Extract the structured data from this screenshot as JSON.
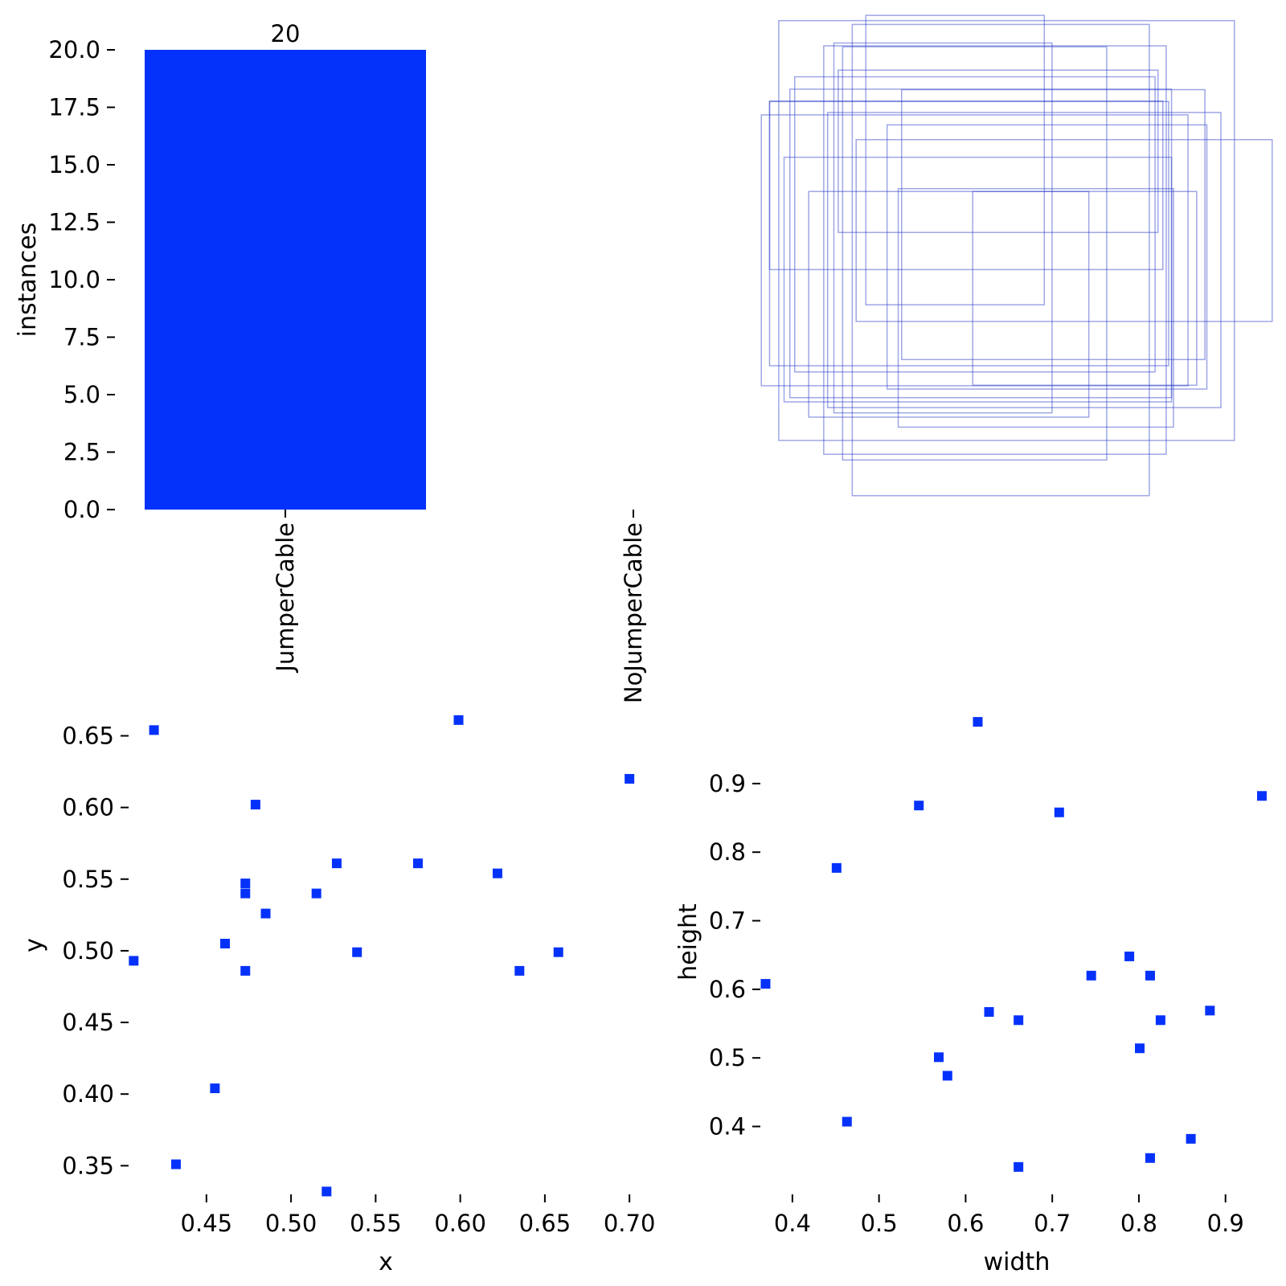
{
  "figure": {
    "background": "#ffffff"
  },
  "colors": {
    "bar_fill": "#0532fa",
    "marker_fill": "#0532fa",
    "box_stroke": "rgba(40,60,200,0.45)",
    "tick_color": "#000000",
    "text_color": "#000000"
  },
  "chart_data": [
    {
      "id": "instances_per_class",
      "type": "bar",
      "ylabel": "instances",
      "categories": [
        "JumperCable",
        "NoJumperCable"
      ],
      "values": [
        20,
        0
      ],
      "bar_labels": [
        "20",
        ""
      ],
      "ylim": [
        0,
        20
      ],
      "yticks": [
        0,
        2.5,
        5,
        7.5,
        10,
        12.5,
        15,
        17.5,
        20
      ],
      "ytick_labels": [
        "0.0",
        "2.5",
        "5.0",
        "7.5",
        "10.0",
        "12.5",
        "15.0",
        "17.5",
        "20.0"
      ],
      "grid": false,
      "legend": "none"
    },
    {
      "id": "bounding_boxes_overlay",
      "type": "rectangles",
      "note": "overlapping unfilled bounding-box outlines, no axes ticks",
      "xlim": [
        0.02,
        1.1
      ],
      "ylim": [
        0.04,
        1.07
      ],
      "rects": [
        [
          0.068,
          0.058,
          0.942,
          0.882
        ],
        [
          0.161,
          0.111,
          0.708,
          0.858
        ],
        [
          0.22,
          0.066,
          0.614,
          0.99
        ],
        [
          0.091,
          0.202,
          0.789,
          0.648
        ],
        [
          0.169,
          0.251,
          0.813,
          0.62
        ],
        [
          0.032,
          0.256,
          0.882,
          0.569
        ],
        [
          0.2,
          0.113,
          0.546,
          0.868
        ],
        [
          0.101,
          0.176,
          0.745,
          0.62
        ],
        [
          0.049,
          0.228,
          0.825,
          0.555
        ],
        [
          0.079,
          0.345,
          0.801,
          0.514
        ],
        [
          0.292,
          0.277,
          0.661,
          0.555
        ],
        [
          0.322,
          0.203,
          0.627,
          0.567
        ],
        [
          0.182,
          0.105,
          0.451,
          0.777
        ],
        [
          0.228,
          0.308,
          0.86,
          0.382
        ],
        [
          0.049,
          0.227,
          0.813,
          0.354
        ],
        [
          0.315,
          0.411,
          0.569,
          0.501
        ],
        [
          0.13,
          0.417,
          0.579,
          0.474
        ],
        [
          0.191,
          0.162,
          0.661,
          0.341
        ],
        [
          0.248,
          0.047,
          0.369,
          0.608
        ],
        [
          0.469,
          0.417,
          0.463,
          0.407
        ]
      ]
    },
    {
      "id": "box_centers",
      "type": "scatter",
      "xlabel": "x",
      "ylabel": "y",
      "xlim": [
        0.404,
        0.708
      ],
      "ylim": [
        0.33,
        0.68
      ],
      "xticks": [
        0.45,
        0.5,
        0.55,
        0.6,
        0.65,
        0.7
      ],
      "xtick_labels": [
        "0.45",
        "0.50",
        "0.55",
        "0.60",
        "0.65",
        "0.70"
      ],
      "yticks": [
        0.65,
        0.6,
        0.55,
        0.5,
        0.45,
        0.4,
        0.35
      ],
      "ytick_labels": [
        "0.65",
        "0.60",
        "0.55",
        "0.50",
        "0.45",
        "0.40",
        "0.35"
      ],
      "points": [
        [
          0.419,
          0.654
        ],
        [
          0.599,
          0.661
        ],
        [
          0.7,
          0.62
        ],
        [
          0.479,
          0.602
        ],
        [
          0.527,
          0.561
        ],
        [
          0.575,
          0.561
        ],
        [
          0.622,
          0.554
        ],
        [
          0.473,
          0.547
        ],
        [
          0.473,
          0.54
        ],
        [
          0.515,
          0.54
        ],
        [
          0.485,
          0.526
        ],
        [
          0.461,
          0.505
        ],
        [
          0.407,
          0.493
        ],
        [
          0.539,
          0.499
        ],
        [
          0.658,
          0.499
        ],
        [
          0.635,
          0.486
        ],
        [
          0.473,
          0.486
        ],
        [
          0.455,
          0.404
        ],
        [
          0.432,
          0.351
        ],
        [
          0.521,
          0.332
        ]
      ],
      "grid": false,
      "legend": "none"
    },
    {
      "id": "box_sizes",
      "type": "scatter",
      "xlabel": "width",
      "ylabel": "height",
      "xlim": [
        0.363,
        0.955
      ],
      "ylim": [
        0.301,
        1.037
      ],
      "xticks": [
        0.4,
        0.5,
        0.6,
        0.7,
        0.8,
        0.9
      ],
      "xtick_labels": [
        "0.4",
        "0.5",
        "0.6",
        "0.7",
        "0.8",
        "0.9"
      ],
      "yticks": [
        0.9,
        0.8,
        0.7,
        0.6,
        0.5,
        0.4
      ],
      "ytick_labels": [
        "0.9",
        "0.8",
        "0.7",
        "0.6",
        "0.5",
        "0.4"
      ],
      "points": [
        [
          0.614,
          0.99
        ],
        [
          0.546,
          0.868
        ],
        [
          0.942,
          0.882
        ],
        [
          0.708,
          0.858
        ],
        [
          0.451,
          0.777
        ],
        [
          0.789,
          0.648
        ],
        [
          0.745,
          0.62
        ],
        [
          0.813,
          0.62
        ],
        [
          0.369,
          0.608
        ],
        [
          0.627,
          0.567
        ],
        [
          0.882,
          0.569
        ],
        [
          0.661,
          0.555
        ],
        [
          0.825,
          0.555
        ],
        [
          0.801,
          0.514
        ],
        [
          0.569,
          0.501
        ],
        [
          0.579,
          0.474
        ],
        [
          0.463,
          0.407
        ],
        [
          0.86,
          0.382
        ],
        [
          0.813,
          0.354
        ],
        [
          0.661,
          0.341
        ]
      ],
      "grid": false,
      "legend": "none"
    }
  ]
}
